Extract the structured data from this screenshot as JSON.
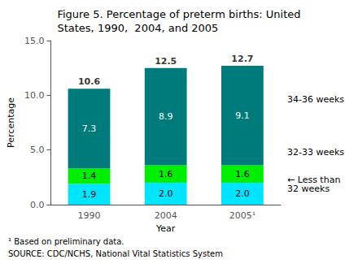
{
  "chart_data": {
    "type": "bar",
    "stacked": true,
    "title": "Figure 5. Percentage of preterm births: United\nStates, 1990,  2004, and 2005",
    "xlabel": "Year",
    "ylabel": "Percentage",
    "categories": [
      "1990",
      "2004",
      "2005¹"
    ],
    "series": [
      {
        "name": "← Less than\n32 weeks",
        "color": "#00E5FF",
        "values": [
          1.9,
          2.0,
          2.0
        ],
        "value_labels": [
          "1.9",
          "2.0",
          "2.0"
        ]
      },
      {
        "name": "32-33 weeks",
        "color": "#00EE00",
        "values": [
          1.4,
          1.6,
          1.6
        ],
        "value_labels": [
          "1.4",
          "1.6",
          "1.6"
        ]
      },
      {
        "name": "34-36 weeks",
        "color": "#007B7B",
        "values": [
          7.3,
          8.9,
          9.1
        ],
        "value_labels": [
          "7.3",
          "8.9",
          "9.1"
        ]
      }
    ],
    "totals": [
      10.6,
      12.5,
      12.7
    ],
    "ylim": [
      0,
      15.0
    ],
    "yticks": [
      {
        "value": 0,
        "label": "0.0"
      },
      {
        "value": 5,
        "label": "5.0"
      },
      {
        "value": 10,
        "label": "10.0"
      },
      {
        "value": 15,
        "label": "15.0"
      }
    ],
    "grid": false,
    "data_labels": true,
    "notes": [
      "¹ Based on preliminary data.",
      "SOURCE: CDC/NCHS, National Vital Statistics System"
    ]
  }
}
